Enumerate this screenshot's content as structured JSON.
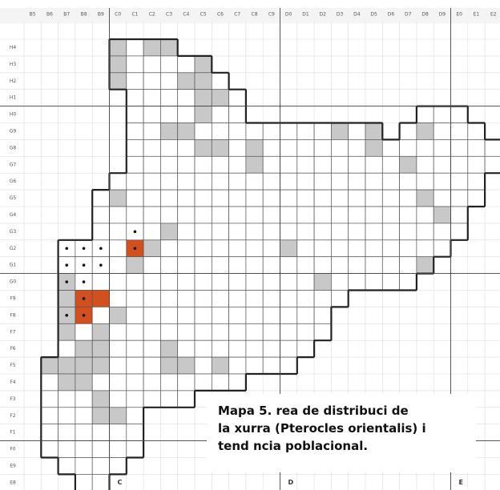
{
  "map": {
    "columns": [
      "B5",
      "B6",
      "B7",
      "B8",
      "B9",
      "C0",
      "C1",
      "C2",
      "C3",
      "C4",
      "C5",
      "C6",
      "C7",
      "C8",
      "C9",
      "D0",
      "D1",
      "D2",
      "D3",
      "D4",
      "D5",
      "D6",
      "D7",
      "D8",
      "D9",
      "E0",
      "E1",
      "E2"
    ],
    "rows": [
      "H4",
      "H3",
      "H2",
      "H1",
      "H0",
      "G9",
      "G8",
      "G7",
      "G6",
      "G5",
      "G4",
      "G3",
      "G2",
      "G1",
      "G0",
      "F9",
      "F8",
      "F7",
      "F6",
      "F5",
      "F4",
      "F3",
      "F2",
      "F1",
      "F0",
      "E9",
      "E8"
    ],
    "zone_letters": [
      "C",
      "D",
      "E"
    ],
    "caption": {
      "label": "Mapa 5",
      "lines": [
        ".   rea de distribuci   de",
        "la xurra (Pterocles orientalis) i",
        "tend   ncia poblacional."
      ]
    }
  }
}
